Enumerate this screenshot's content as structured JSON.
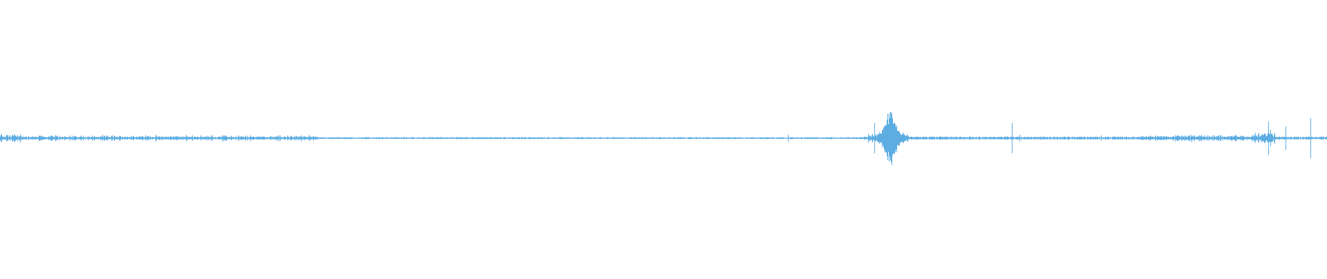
{
  "waveform": {
    "color": "#5dade2",
    "background": "#ffffff"
  }
}
